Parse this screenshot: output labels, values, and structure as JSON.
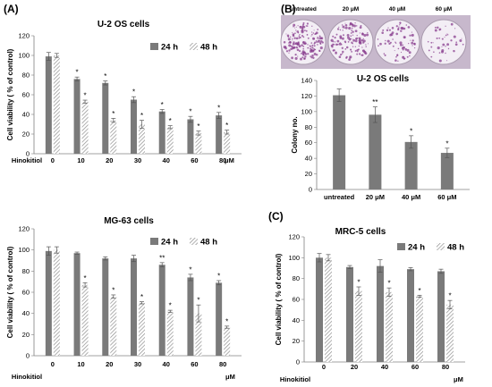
{
  "panels": [
    {
      "label": "(A)"
    },
    {
      "label": "(B)"
    },
    {
      "label": "(C)"
    }
  ],
  "colony_image": {
    "dish_labels": [
      "untreated",
      "20 μM",
      "40 μM",
      "60 μM"
    ],
    "dish_density": [
      1.0,
      0.75,
      0.45,
      0.25
    ],
    "stain_color": "#8a3f8f"
  },
  "colors": {
    "bar_24h": "#7a7a7a",
    "bar_48h_hatch": "#8f8f8f",
    "axis": "#808080",
    "plate_background": "#c7b8cc"
  },
  "chart_data": [
    {
      "type": "bar",
      "title": "U-2 OS cells",
      "xlabel": "Hinokitiol",
      "x_unit": "μM",
      "ylabel": "Cell viability ( % of control)",
      "ylim": [
        0,
        120
      ],
      "yticks": [
        0,
        20,
        40,
        60,
        80,
        100,
        120
      ],
      "categories": [
        "0",
        "10",
        "20",
        "30",
        "40",
        "60",
        "80"
      ],
      "legend_position": "top-right",
      "series": [
        {
          "name": "24 h",
          "values": [
            99,
            76,
            72,
            55,
            43,
            35,
            39
          ],
          "errors": [
            4,
            2,
            2,
            3,
            2,
            3,
            3
          ],
          "sig": [
            "",
            "*",
            "*",
            "*",
            "*",
            "*",
            "*"
          ]
        },
        {
          "name": "48 h",
          "values": [
            100,
            53,
            34,
            30,
            27,
            21,
            22
          ],
          "errors": [
            2,
            1.5,
            2,
            4,
            1.5,
            2,
            2
          ],
          "sig": [
            "",
            "*",
            "*",
            "*",
            "*",
            "*",
            "*"
          ]
        }
      ]
    },
    {
      "type": "bar",
      "title": "MG-63 cells",
      "xlabel": "Hinokitiol",
      "x_unit": "μM",
      "ylabel": "Cell viability ( % of control)",
      "ylim": [
        0,
        120
      ],
      "yticks": [
        0,
        20,
        40,
        60,
        80,
        100,
        120
      ],
      "categories": [
        "0",
        "10",
        "20",
        "30",
        "40",
        "60",
        "80"
      ],
      "legend_position": "top-right",
      "series": [
        {
          "name": "24 h",
          "values": [
            99,
            97,
            92,
            92,
            86,
            74,
            69
          ],
          "errors": [
            4,
            1,
            1.5,
            3,
            2,
            3,
            2
          ],
          "sig": [
            "",
            "",
            "",
            "",
            "**",
            "*",
            "*"
          ]
        },
        {
          "name": "48 h",
          "values": [
            100,
            67,
            56,
            50,
            42,
            40,
            27
          ],
          "errors": [
            3,
            2,
            1.5,
            1,
            1,
            8,
            1
          ],
          "sig": [
            "",
            "*",
            "*",
            "*",
            "*",
            "*",
            "*"
          ]
        }
      ]
    },
    {
      "type": "bar",
      "title": "U-2 OS cells",
      "xlabel": "",
      "ylabel": "Colony no.",
      "ylim": [
        0,
        140
      ],
      "yticks": [
        0,
        20,
        40,
        60,
        80,
        100,
        120,
        140
      ],
      "categories": [
        "untreated",
        "20 μM",
        "40 μM",
        "60 μM"
      ],
      "series": [
        {
          "name": "",
          "values": [
            121,
            96,
            61,
            47
          ],
          "errors": [
            8,
            10,
            8,
            6
          ],
          "sig": [
            "",
            "**",
            "*",
            "*"
          ]
        }
      ]
    },
    {
      "type": "bar",
      "title": "MRC-5 cells",
      "xlabel": "Hinokitiol",
      "x_unit": "μM",
      "ylabel": "Cell viability ( % of control)",
      "ylim": [
        0,
        120
      ],
      "yticks": [
        0,
        20,
        40,
        60,
        80,
        100,
        120
      ],
      "categories": [
        "0",
        "20",
        "40",
        "60",
        "80"
      ],
      "legend_position": "top-right",
      "series": [
        {
          "name": "24 h",
          "values": [
            100,
            91,
            92,
            89,
            87
          ],
          "errors": [
            4,
            1.5,
            6,
            1.5,
            2
          ],
          "sig": [
            "",
            "",
            "",
            "",
            ""
          ]
        },
        {
          "name": "48 h",
          "values": [
            100,
            68,
            67,
            63,
            55
          ],
          "errors": [
            3,
            4,
            4,
            1,
            4
          ],
          "sig": [
            "",
            "*",
            "*",
            "*",
            "*"
          ]
        }
      ]
    }
  ]
}
